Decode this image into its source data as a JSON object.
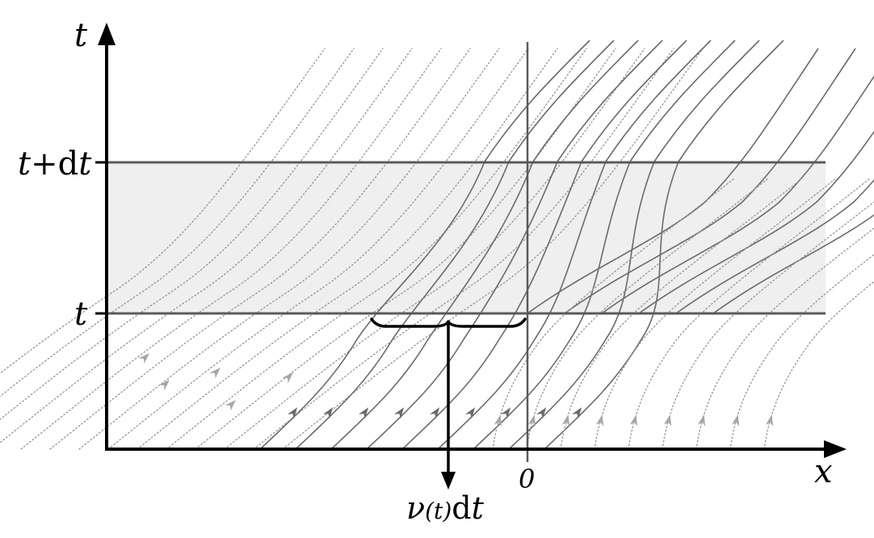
{
  "axes": {
    "y_label": "t",
    "x_label": "x",
    "origin_label": "0"
  },
  "levels": {
    "upper_label_prefix": "t+d",
    "upper_label_var": "t",
    "lower_label": "t"
  },
  "brace_annotation": {
    "nu": "ν",
    "paren_open": "(",
    "arg": "t",
    "paren_close": ")",
    "d": "d",
    "var": "t"
  },
  "colors": {
    "axis": "#000000",
    "level_lines": "#5a5a5a",
    "band_fill": "#efefef",
    "flow_solid": "#6a6a6a",
    "flow_dotted": "#9a9a9a"
  }
}
